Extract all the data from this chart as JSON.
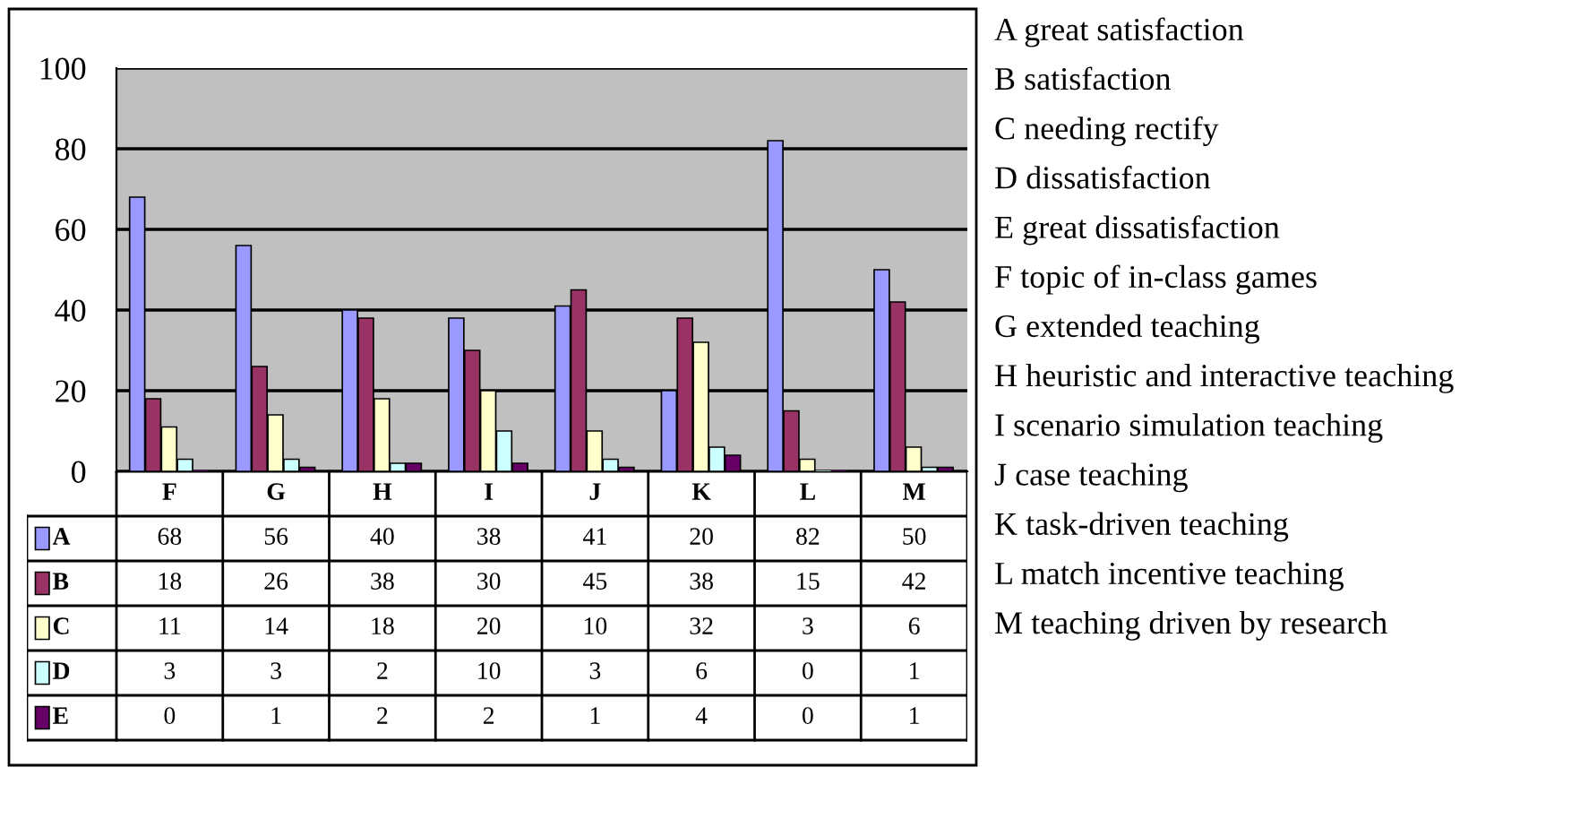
{
  "chart_data": {
    "type": "bar",
    "categories": [
      "F",
      "G",
      "H",
      "I",
      "J",
      "K",
      "L",
      "M"
    ],
    "series": [
      {
        "name": "A",
        "color": "#9999ff",
        "values": [
          68,
          56,
          40,
          38,
          41,
          20,
          82,
          50
        ]
      },
      {
        "name": "B",
        "color": "#993366",
        "values": [
          18,
          26,
          38,
          30,
          45,
          38,
          15,
          42
        ]
      },
      {
        "name": "C",
        "color": "#ffffcc",
        "values": [
          11,
          14,
          18,
          20,
          10,
          32,
          3,
          6
        ]
      },
      {
        "name": "D",
        "color": "#ccffff",
        "values": [
          3,
          3,
          2,
          10,
          3,
          6,
          0,
          1
        ]
      },
      {
        "name": "E",
        "color": "#660066",
        "values": [
          0,
          1,
          2,
          2,
          1,
          4,
          0,
          1
        ]
      }
    ],
    "ylim": [
      0,
      100
    ],
    "yticks": [
      0,
      20,
      40,
      60,
      80,
      100
    ],
    "grid": "y",
    "data_labels": true,
    "legend": "bottom left",
    "annotations": [
      "A great satisfaction",
      "B satisfaction",
      "C needing rectify",
      "D dissatisfaction",
      "E great dissatisfaction",
      "F topic of in-class games",
      "G extended teaching",
      "H heuristic and interactive teaching",
      "I scenario simulation teaching",
      "J case teaching",
      "K task-driven teaching",
      "L match incentive teaching",
      "M teaching driven by research"
    ]
  }
}
